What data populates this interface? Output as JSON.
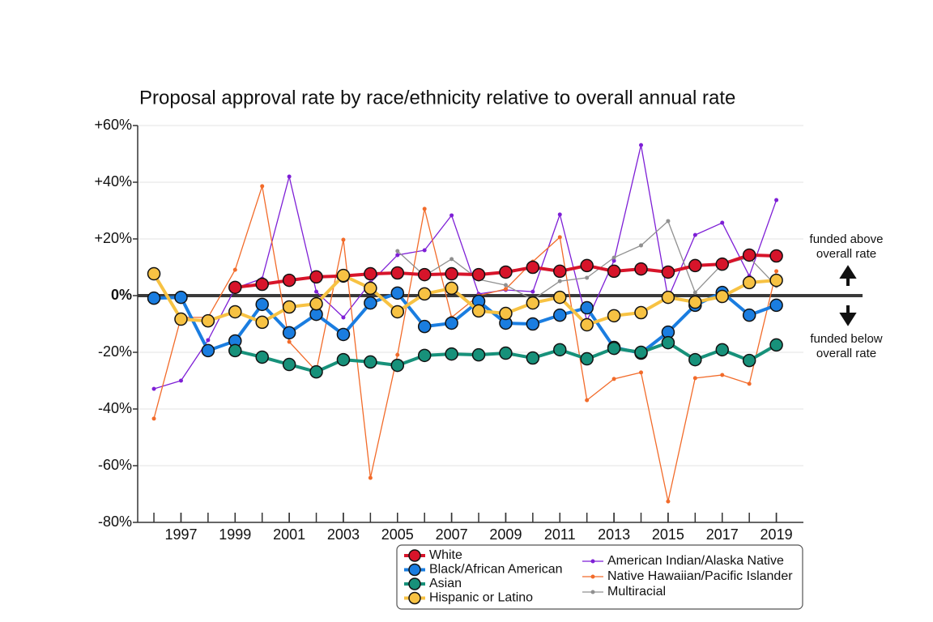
{
  "chart_data": {
    "type": "line",
    "title": "Proposal approval rate by race/ethnicity relative to overall annual rate",
    "x": [
      1996,
      1997,
      1998,
      1999,
      2000,
      2001,
      2002,
      2003,
      2004,
      2005,
      2006,
      2007,
      2008,
      2009,
      2010,
      2011,
      2012,
      2013,
      2014,
      2015,
      2016,
      2017,
      2018,
      2019
    ],
    "xlim": [
      1995.4,
      2020
    ],
    "xticks": [
      1997,
      1999,
      2001,
      2003,
      2005,
      2007,
      2009,
      2011,
      2013,
      2015,
      2017,
      2019
    ],
    "ylim": [
      -80,
      60
    ],
    "yticks": [
      {
        "value": 60,
        "label": "+60%"
      },
      {
        "value": 40,
        "label": "+40%"
      },
      {
        "value": 20,
        "label": "+20%"
      },
      {
        "value": 0,
        "label": "0%"
      },
      {
        "value": -20,
        "label": "-20%"
      },
      {
        "value": -40,
        "label": "-40%"
      },
      {
        "value": -60,
        "label": "-60%"
      },
      {
        "value": -80,
        "label": "-80%"
      }
    ],
    "grid": true,
    "annotations": [
      [
        "funded above",
        "overall rate"
      ],
      [
        "funded below",
        "overall rate"
      ]
    ],
    "series": [
      {
        "name": "White",
        "color": "#d7142a",
        "values": [
          null,
          null,
          null,
          2.9,
          4,
          5.4,
          6.6,
          6.9,
          7.7,
          8,
          7.4,
          7.7,
          7.4,
          8.3,
          10,
          8.6,
          10.6,
          8.6,
          9.4,
          8.3,
          10.6,
          11.1,
          14.3,
          14
        ]
      },
      {
        "name": "Black/African American",
        "color": "#1a7de0",
        "values": [
          -0.9,
          -0.6,
          -19.4,
          -16,
          -3.1,
          -13.1,
          -6.6,
          -13.7,
          -2.6,
          0.9,
          -10.9,
          -9.7,
          -2,
          -9.7,
          -10,
          -6.9,
          -4.3,
          -18.3,
          -20.3,
          -12.9,
          -3.4,
          1.1,
          -6.9,
          -3.4
        ]
      },
      {
        "name": "Asian",
        "color": "#17917a",
        "values": [
          null,
          null,
          null,
          -19.4,
          -21.7,
          -24.3,
          -26.9,
          -22.6,
          -23.4,
          -24.6,
          -21.1,
          -20.6,
          -20.9,
          -20.3,
          -22,
          -19.1,
          -22.3,
          -18.6,
          -20,
          -16.6,
          -22.6,
          -19.1,
          -22.9,
          -17.4
        ]
      },
      {
        "name": "Hispanic or Latino",
        "color": "#f7c243",
        "values": [
          7.7,
          -8.3,
          -8.9,
          -5.7,
          -9.4,
          -4,
          -2.9,
          7.1,
          2.6,
          -5.7,
          0.6,
          2.6,
          -5.4,
          -6.3,
          -2.6,
          -0.6,
          -10.3,
          -7.1,
          -6,
          -0.6,
          -2.3,
          -0.3,
          4.6,
          5.4
        ]
      },
      {
        "name": "American Indian/Alaska Native",
        "color": "#7e1fd6",
        "values": [
          -32.9,
          -30,
          -15.7,
          2.6,
          6,
          42,
          1.4,
          -7.7,
          4.6,
          14.3,
          16,
          28.3,
          0.6,
          2,
          1.4,
          28.6,
          -8.9,
          12.3,
          53.1,
          -0.9,
          21.4,
          25.7,
          6.9,
          33.7
        ]
      },
      {
        "name": "Native Hawaiian/Pacific Islander",
        "color": "#f26b2a",
        "values": [
          -43.4,
          -7.7,
          -7.7,
          9.1,
          38.6,
          -16.3,
          -26.6,
          19.7,
          -64.3,
          -20.9,
          30.6,
          -7.7,
          0,
          2.3,
          12,
          20.6,
          -36.9,
          -29.4,
          -27.1,
          -72.6,
          -29.1,
          -28,
          -31.1,
          8.6
        ]
      },
      {
        "name": "Multiracial",
        "color": "#909090",
        "values": [
          null,
          null,
          null,
          null,
          null,
          null,
          null,
          null,
          null,
          15.7,
          7,
          12.9,
          5.7,
          3.7,
          -1.4,
          5.1,
          6.3,
          13.4,
          17.7,
          26.3,
          1.1,
          11.1,
          13.4,
          3.4
        ]
      }
    ]
  }
}
